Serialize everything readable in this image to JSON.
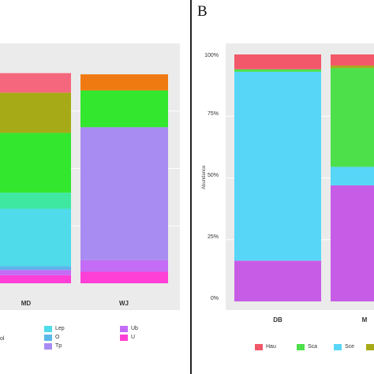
{
  "panel_label": "B",
  "chart_data": [
    {
      "type": "bar",
      "stacked": true,
      "categories": [
        "MD",
        "WJ"
      ],
      "series": [
        {
          "name": "U",
          "color": "#ff3fd5",
          "values": [
            0.035,
            0.05
          ]
        },
        {
          "name": "Ub",
          "color": "#c46cf5",
          "values": [
            0.02,
            0.05
          ]
        },
        {
          "name": "Tp",
          "color": "#a98cf2",
          "values": [
            0.005,
            0.58
          ]
        },
        {
          "name": "O",
          "color": "#5ab7ea",
          "values": [
            0.015,
            0.0
          ]
        },
        {
          "name": "Lep",
          "color": "#4fdbe9",
          "values": [
            0.25,
            0.0
          ]
        },
        {
          "name": "",
          "color": "#3fe8a0",
          "values": [
            0.07,
            0.0
          ]
        },
        {
          "name": "",
          "color": "#33e62e",
          "values": [
            0.26,
            0.16
          ]
        },
        {
          "name": "",
          "color": "#a7aa17",
          "values": [
            0.175,
            0.0
          ]
        },
        {
          "name": "",
          "color": "#f07a12",
          "values": [
            0.0,
            0.07
          ]
        },
        {
          "name": "",
          "color": "#f5677c",
          "values": [
            0.085,
            0.0
          ]
        }
      ],
      "ylim": [
        0,
        1
      ],
      "grid": true,
      "legend_position": "bottom",
      "legend_visible": [
        {
          "text": "ol",
          "color": "#a7aa17"
        },
        {
          "text": "Lep",
          "color": "#4fdbe9"
        },
        {
          "text": "O",
          "color": "#5ab7ea"
        },
        {
          "text": "Tp",
          "color": "#a98cf2"
        },
        {
          "text": "Ub",
          "color": "#c46cf5"
        },
        {
          "text": "U",
          "color": "#ff3fd5"
        }
      ]
    },
    {
      "type": "bar",
      "stacked": true,
      "categories": [
        "DB",
        "M"
      ],
      "ylabel": "Abundance",
      "yticks": [
        "0%",
        "25%",
        "50%",
        "75%",
        "100%"
      ],
      "ylim": [
        0,
        1
      ],
      "series": [
        {
          "name": "",
          "color": "#c75de6",
          "values": [
            0.165,
            0.47
          ]
        },
        {
          "name": "Sce",
          "color": "#57d6f7",
          "values": [
            0.765,
            0.075
          ]
        },
        {
          "name": "Sca",
          "color": "#4de04a",
          "values": [
            0.01,
            0.4
          ]
        },
        {
          "name": "",
          "color": "#a7aa17",
          "values": [
            0.0,
            0.01
          ]
        },
        {
          "name": "Hau",
          "color": "#f2576a",
          "values": [
            0.06,
            0.045
          ]
        }
      ],
      "grid": true,
      "legend_position": "bottom",
      "legend_visible": [
        {
          "text": "Hau",
          "color": "#f2576a"
        },
        {
          "text": "Sca",
          "color": "#4de04a"
        },
        {
          "text": "Sce",
          "color": "#57d6f7"
        },
        {
          "text": "",
          "color": "#a7aa17"
        }
      ]
    }
  ]
}
